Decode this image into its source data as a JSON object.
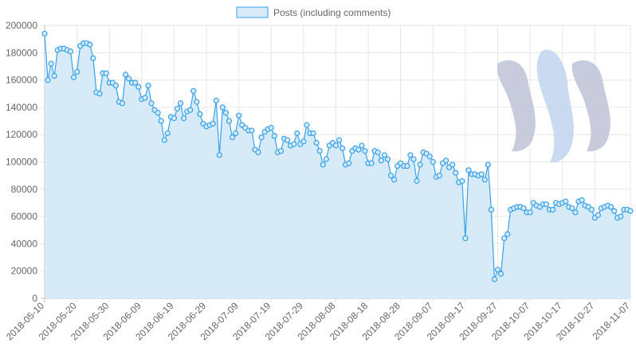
{
  "chart_data": {
    "type": "area",
    "legend": {
      "position": "top"
    },
    "series": [
      {
        "name": "Posts (including comments)",
        "fill_color": "#d6eaf8",
        "line_color": "#36a2eb",
        "x": [
          "2018-05-10",
          "2018-05-11",
          "2018-05-12",
          "2018-05-13",
          "2018-05-14",
          "2018-05-15",
          "2018-05-16",
          "2018-05-17",
          "2018-05-18",
          "2018-05-19",
          "2018-05-20",
          "2018-05-21",
          "2018-05-22",
          "2018-05-23",
          "2018-05-24",
          "2018-05-25",
          "2018-05-26",
          "2018-05-27",
          "2018-05-28",
          "2018-05-29",
          "2018-05-30",
          "2018-05-31",
          "2018-06-01",
          "2018-06-02",
          "2018-06-03",
          "2018-06-04",
          "2018-06-05",
          "2018-06-06",
          "2018-06-07",
          "2018-06-08",
          "2018-06-09",
          "2018-06-10",
          "2018-06-11",
          "2018-06-12",
          "2018-06-13",
          "2018-06-14",
          "2018-06-15",
          "2018-06-16",
          "2018-06-17",
          "2018-06-18",
          "2018-06-19",
          "2018-06-20",
          "2018-06-21",
          "2018-06-22",
          "2018-06-23",
          "2018-06-24",
          "2018-06-25",
          "2018-06-26",
          "2018-06-27",
          "2018-06-28",
          "2018-06-29",
          "2018-06-30",
          "2018-07-01",
          "2018-07-02",
          "2018-07-03",
          "2018-07-04",
          "2018-07-05",
          "2018-07-06",
          "2018-07-07",
          "2018-07-08",
          "2018-07-09",
          "2018-07-10",
          "2018-07-11",
          "2018-07-12",
          "2018-07-13",
          "2018-07-14",
          "2018-07-15",
          "2018-07-16",
          "2018-07-17",
          "2018-07-18",
          "2018-07-19",
          "2018-07-20",
          "2018-07-21",
          "2018-07-22",
          "2018-07-23",
          "2018-07-24",
          "2018-07-25",
          "2018-07-26",
          "2018-07-27",
          "2018-07-28",
          "2018-07-29",
          "2018-07-30",
          "2018-07-31",
          "2018-08-01",
          "2018-08-02",
          "2018-08-03",
          "2018-08-04",
          "2018-08-05",
          "2018-08-06",
          "2018-08-07",
          "2018-08-08",
          "2018-08-09",
          "2018-08-10",
          "2018-08-11",
          "2018-08-12",
          "2018-08-13",
          "2018-08-14",
          "2018-08-15",
          "2018-08-16",
          "2018-08-17",
          "2018-08-18",
          "2018-08-19",
          "2018-08-20",
          "2018-08-21",
          "2018-08-22",
          "2018-08-23",
          "2018-08-24",
          "2018-08-25",
          "2018-08-26",
          "2018-08-27",
          "2018-08-28",
          "2018-08-29",
          "2018-08-30",
          "2018-08-31",
          "2018-09-01",
          "2018-09-02",
          "2018-09-03",
          "2018-09-04",
          "2018-09-05",
          "2018-09-06",
          "2018-09-07",
          "2018-09-08",
          "2018-09-09",
          "2018-09-10",
          "2018-09-11",
          "2018-09-12",
          "2018-09-13",
          "2018-09-14",
          "2018-09-15",
          "2018-09-16",
          "2018-09-17",
          "2018-09-18",
          "2018-09-19",
          "2018-09-20",
          "2018-09-21",
          "2018-09-22",
          "2018-09-23",
          "2018-09-24",
          "2018-09-25",
          "2018-09-26",
          "2018-09-27",
          "2018-09-28",
          "2018-09-29",
          "2018-09-30",
          "2018-10-01",
          "2018-10-02",
          "2018-10-03",
          "2018-10-04",
          "2018-10-05",
          "2018-10-06",
          "2018-10-07",
          "2018-10-08",
          "2018-10-09",
          "2018-10-10",
          "2018-10-11",
          "2018-10-12",
          "2018-10-13",
          "2018-10-14",
          "2018-10-15",
          "2018-10-16",
          "2018-10-17",
          "2018-10-18",
          "2018-10-19",
          "2018-10-20",
          "2018-10-21",
          "2018-10-22",
          "2018-10-23",
          "2018-10-24",
          "2018-10-25",
          "2018-10-26",
          "2018-10-27",
          "2018-10-28",
          "2018-10-29",
          "2018-10-30",
          "2018-10-31",
          "2018-11-01",
          "2018-11-02",
          "2018-11-03",
          "2018-11-04",
          "2018-11-05",
          "2018-11-06",
          "2018-11-07"
        ],
        "values": [
          194000,
          160000,
          172000,
          163000,
          182000,
          183000,
          183000,
          182000,
          181000,
          162000,
          166000,
          185000,
          187000,
          187000,
          186000,
          176000,
          151000,
          150000,
          165000,
          165000,
          158000,
          158000,
          156000,
          144000,
          143000,
          164000,
          161000,
          158000,
          158000,
          155000,
          146000,
          147000,
          156000,
          143000,
          138000,
          136000,
          130000,
          116000,
          121000,
          133000,
          132000,
          139000,
          143000,
          132000,
          137000,
          138000,
          152000,
          144000,
          135000,
          128000,
          126000,
          127000,
          128000,
          145000,
          105000,
          140000,
          136000,
          130000,
          118000,
          121000,
          134000,
          127000,
          125000,
          123000,
          123000,
          109000,
          107000,
          118000,
          122000,
          124000,
          125000,
          119000,
          107000,
          108000,
          117000,
          116000,
          112000,
          113000,
          121000,
          113000,
          115000,
          127000,
          121000,
          121000,
          114000,
          108000,
          98000,
          102000,
          112000,
          114000,
          112000,
          116000,
          110000,
          98000,
          99000,
          108000,
          110000,
          109000,
          112000,
          108000,
          99000,
          99000,
          108000,
          107000,
          101000,
          105000,
          102000,
          90000,
          87000,
          97000,
          99000,
          97000,
          97000,
          105000,
          102000,
          86000,
          98000,
          107000,
          106000,
          104000,
          100000,
          89000,
          90000,
          99000,
          101000,
          96000,
          98000,
          92000,
          85000,
          86000,
          44000,
          94000,
          91000,
          91000,
          90000,
          91000,
          87000,
          98000,
          65000,
          14000,
          21000,
          18000,
          44000,
          47000,
          65000,
          66000,
          67000,
          67000,
          66000,
          63000,
          63000,
          70000,
          68000,
          67000,
          69000,
          69000,
          65000,
          65000,
          70000,
          69000,
          70000,
          71000,
          67000,
          66000,
          63000,
          71000,
          72000,
          68000,
          67000,
          65000,
          59000,
          61000,
          66000,
          67000,
          68000,
          67000,
          64000,
          59000,
          60000,
          65000,
          65000,
          64000
        ]
      }
    ],
    "x_ticks": [
      "2018-05-10",
      "2018-05-20",
      "2018-05-30",
      "2018-06-09",
      "2018-06-19",
      "2018-06-29",
      "2018-07-09",
      "2018-07-19",
      "2018-07-29",
      "2018-08-08",
      "2018-08-18",
      "2018-08-28",
      "2018-09-07",
      "2018-09-17",
      "2018-09-27",
      "2018-10-07",
      "2018-10-17",
      "2018-10-27",
      "2018-11-07"
    ],
    "y_ticks": [
      "0",
      "20000",
      "40000",
      "60000",
      "80000",
      "100000",
      "120000",
      "140000",
      "160000",
      "180000",
      "200000"
    ],
    "ylim": [
      0,
      200000
    ],
    "xlabel": "",
    "ylabel": "",
    "grid": true
  },
  "watermark": {
    "icon": "steem-logo-icon"
  }
}
